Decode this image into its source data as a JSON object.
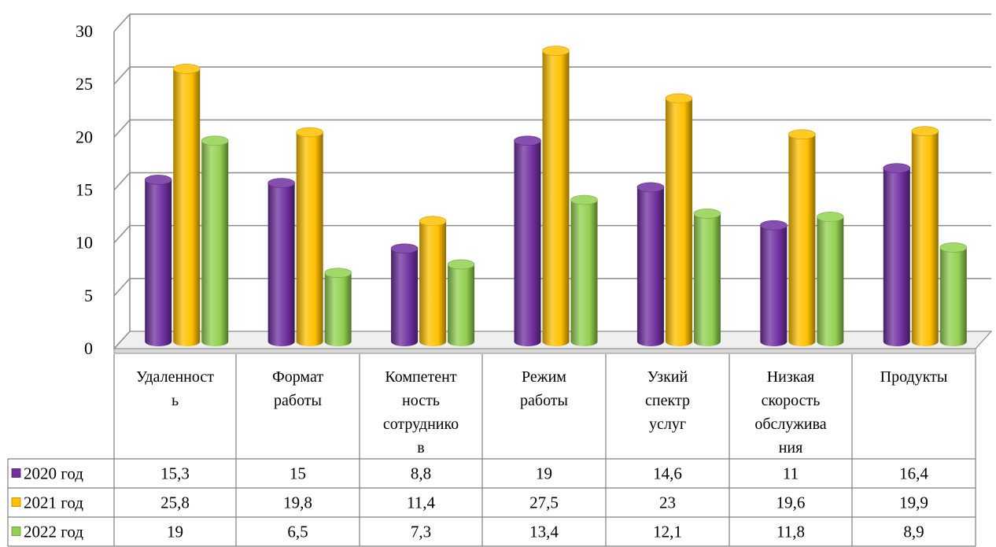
{
  "chart_data": {
    "type": "bar",
    "title": "",
    "xlabel": "",
    "ylabel": "",
    "ylim": [
      0,
      30
    ],
    "yticks": [
      0,
      5,
      10,
      15,
      20,
      25,
      30
    ],
    "grid": true,
    "legend_placement": "data-table-left",
    "style": "3d-cylinder",
    "categories": [
      [
        "Удаленност",
        "ь"
      ],
      [
        "Формат",
        "работы"
      ],
      [
        "Компетент",
        "ность",
        "сотруднико",
        "в"
      ],
      [
        "Режим",
        "работы"
      ],
      [
        "Узкий",
        "спектр",
        "услуг"
      ],
      [
        "Низкая",
        "скорость",
        "обслужива",
        "ния"
      ],
      [
        "Продукты"
      ]
    ],
    "series": [
      {
        "name": "2020 год",
        "color": "#7030a0",
        "values": [
          15.3,
          15,
          8.8,
          19,
          14.6,
          11,
          16.4
        ],
        "labels": [
          "15,3",
          "15",
          "8,8",
          "19",
          "14,6",
          "11",
          "16,4"
        ]
      },
      {
        "name": "2021 год",
        "color": "#ffc000",
        "values": [
          25.8,
          19.8,
          11.4,
          27.5,
          23,
          19.6,
          19.9
        ],
        "labels": [
          "25,8",
          "19,8",
          "11,4",
          "27,5",
          "23",
          "19,6",
          "19,9"
        ]
      },
      {
        "name": "2022 год",
        "color": "#92d050",
        "values": [
          19,
          6.5,
          7.3,
          13.4,
          12.1,
          11.8,
          8.9
        ],
        "labels": [
          "19",
          "6,5",
          "7,3",
          "13,4",
          "12,1",
          "11,8",
          "8,9"
        ]
      }
    ]
  }
}
